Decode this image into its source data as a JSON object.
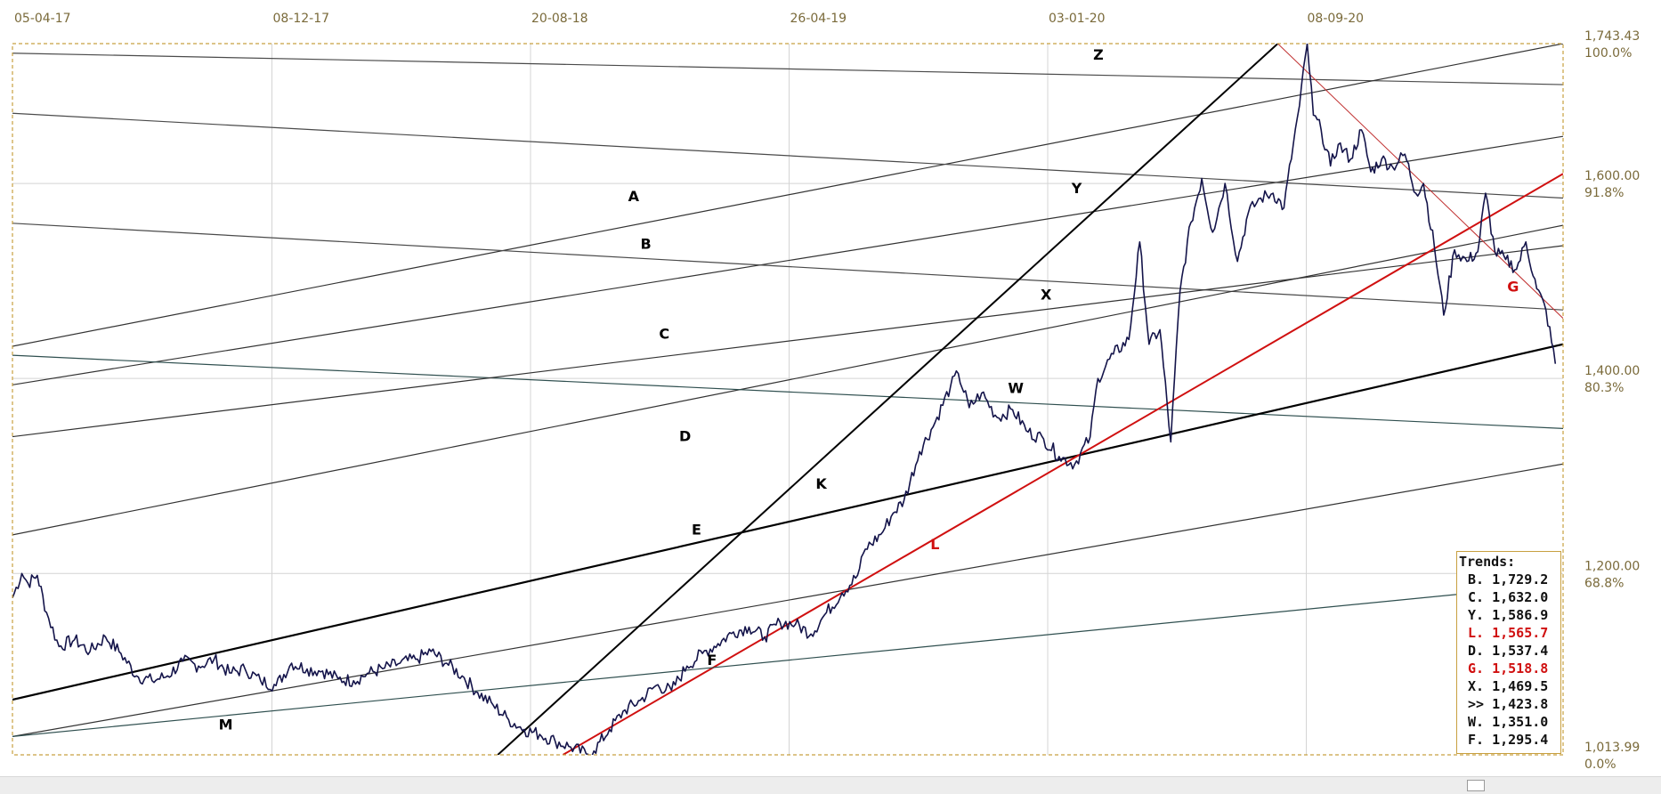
{
  "chart_data": {
    "type": "line",
    "x_ticks": [
      "05-04-17",
      "08-12-17",
      "20-08-18",
      "26-04-19",
      "03-01-20",
      "08-09-20"
    ],
    "price_ticks": [
      "1,743.43",
      "1,600.00",
      "1,400.00",
      "1,200.00",
      "1,013.99"
    ],
    "price_tick_values": [
      1743.43,
      1600,
      1400,
      1200,
      1013.99
    ],
    "pct_ticks": [
      "100.0%",
      "91.8%",
      "80.3%",
      "68.8%",
      "0.0%"
    ],
    "ylim": [
      1013.99,
      1743.43
    ],
    "grid": true,
    "series_color": "#14144a",
    "price_points": [
      [
        0.0,
        1175
      ],
      [
        0.6,
        1200
      ],
      [
        1.0,
        1190
      ],
      [
        1.6,
        1198
      ],
      [
        2.2,
        1160
      ],
      [
        3.0,
        1125
      ],
      [
        4.0,
        1132
      ],
      [
        5.0,
        1120
      ],
      [
        6.0,
        1135
      ],
      [
        7.0,
        1118
      ],
      [
        8.0,
        1095
      ],
      [
        9.0,
        1090
      ],
      [
        10.0,
        1095
      ],
      [
        11.0,
        1110
      ],
      [
        12.0,
        1105
      ],
      [
        13.0,
        1112
      ],
      [
        14.0,
        1098
      ],
      [
        15.0,
        1102
      ],
      [
        16.0,
        1090
      ],
      [
        17.0,
        1085
      ],
      [
        18.0,
        1108
      ],
      [
        19.0,
        1102
      ],
      [
        20.0,
        1100
      ],
      [
        21.0,
        1092
      ],
      [
        22.0,
        1090
      ],
      [
        23.0,
        1098
      ],
      [
        24.0,
        1103
      ],
      [
        25.0,
        1108
      ],
      [
        26.0,
        1112
      ],
      [
        27.0,
        1120
      ],
      [
        28.0,
        1108
      ],
      [
        29.0,
        1095
      ],
      [
        30.0,
        1078
      ],
      [
        31.0,
        1065
      ],
      [
        32.0,
        1050
      ],
      [
        33.0,
        1040
      ],
      [
        34.0,
        1035
      ],
      [
        35.0,
        1028
      ],
      [
        36.0,
        1022
      ],
      [
        37.0,
        1015
      ],
      [
        37.5,
        1018
      ],
      [
        38.5,
        1040
      ],
      [
        39.5,
        1060
      ],
      [
        40.5,
        1070
      ],
      [
        41.5,
        1085
      ],
      [
        42.5,
        1080
      ],
      [
        43.5,
        1105
      ],
      [
        44.5,
        1118
      ],
      [
        45.5,
        1128
      ],
      [
        46.5,
        1140
      ],
      [
        47.5,
        1145
      ],
      [
        48.5,
        1135
      ],
      [
        49.5,
        1150
      ],
      [
        50.5,
        1148
      ],
      [
        51.5,
        1138
      ],
      [
        52.5,
        1160
      ],
      [
        53.5,
        1180
      ],
      [
        54.5,
        1198
      ],
      [
        55.0,
        1225
      ],
      [
        56.0,
        1240
      ],
      [
        56.8,
        1262
      ],
      [
        57.5,
        1275
      ],
      [
        58.5,
        1325
      ],
      [
        59.5,
        1355
      ],
      [
        60.5,
        1392
      ],
      [
        61.0,
        1405
      ],
      [
        61.7,
        1370
      ],
      [
        62.5,
        1385
      ],
      [
        63.5,
        1360
      ],
      [
        64.5,
        1368
      ],
      [
        65.5,
        1345
      ],
      [
        66.5,
        1338
      ],
      [
        67.5,
        1320
      ],
      [
        68.5,
        1312
      ],
      [
        69.5,
        1340
      ],
      [
        70.0,
        1400
      ],
      [
        71.0,
        1425
      ],
      [
        72.0,
        1440
      ],
      [
        72.7,
        1540
      ],
      [
        73.3,
        1435
      ],
      [
        74.0,
        1450
      ],
      [
        74.7,
        1335
      ],
      [
        75.3,
        1490
      ],
      [
        76.0,
        1560
      ],
      [
        76.7,
        1605
      ],
      [
        77.4,
        1550
      ],
      [
        78.2,
        1600
      ],
      [
        79.0,
        1520
      ],
      [
        79.7,
        1570
      ],
      [
        80.5,
        1585
      ],
      [
        81.3,
        1590
      ],
      [
        82.0,
        1575
      ],
      [
        82.6,
        1640
      ],
      [
        83.0,
        1680
      ],
      [
        83.5,
        1743
      ],
      [
        83.9,
        1670
      ],
      [
        84.4,
        1655
      ],
      [
        85.0,
        1618
      ],
      [
        85.5,
        1640
      ],
      [
        86.3,
        1625
      ],
      [
        87.0,
        1655
      ],
      [
        87.6,
        1612
      ],
      [
        88.3,
        1625
      ],
      [
        89.0,
        1617
      ],
      [
        89.8,
        1630
      ],
      [
        90.5,
        1590
      ],
      [
        91.0,
        1600
      ],
      [
        91.7,
        1535
      ],
      [
        92.3,
        1465
      ],
      [
        93.0,
        1532
      ],
      [
        93.8,
        1520
      ],
      [
        94.5,
        1530
      ],
      [
        95.0,
        1590
      ],
      [
        95.6,
        1530
      ],
      [
        96.3,
        1522
      ],
      [
        97.0,
        1512
      ],
      [
        97.6,
        1540
      ],
      [
        98.3,
        1492
      ],
      [
        98.9,
        1470
      ],
      [
        99.5,
        1415
      ]
    ],
    "trend_lines": [
      {
        "name": "Z",
        "p1": [
          -30.4,
          1743.43
        ],
        "p2": [
          100.0,
          1701.4
        ],
        "color": "#4a4a4a",
        "width": 1.2
      },
      {
        "name": "A",
        "p1": [
          0.0,
          1433
        ],
        "p2": [
          100.0,
          1743.43
        ],
        "color": "#333333",
        "width": 1.2
      },
      {
        "name": "B",
        "p1": [
          0.0,
          1393.5
        ],
        "p2": [
          100.0,
          1648.3
        ],
        "color": "#333333",
        "width": 1.2
      },
      {
        "name": "Y",
        "p1": [
          0.0,
          1672.0
        ],
        "p2": [
          100.0,
          1585.0
        ],
        "color": "#4a4a4a",
        "width": 1.2
      },
      {
        "name": "X",
        "p1": [
          0.0,
          1559.2
        ],
        "p2": [
          100.0,
          1470.3
        ],
        "color": "#4a4a4a",
        "width": 1.2
      },
      {
        "name": "C",
        "p1": [
          0.0,
          1239.6
        ],
        "p2": [
          100.0,
          1557.1
        ],
        "color": "#333333",
        "width": 1.2
      },
      {
        "name": "W",
        "p1": [
          0.0,
          1423.8
        ],
        "p2": [
          100.0,
          1348.7
        ],
        "color": "#2f4f4f",
        "width": 1.2
      },
      {
        "name": "D",
        "p1": [
          0.0,
          1340.3
        ],
        "p2": [
          100.0,
          1536.2
        ],
        "color": "#333333",
        "width": 1.2
      },
      {
        "name": "E",
        "p1": [
          0.0,
          1070.6
        ],
        "p2": [
          100.0,
          1435.1
        ],
        "color": "#000000",
        "width": 2.2
      },
      {
        "name": "F",
        "p1": [
          0.0,
          1032.8
        ],
        "p2": [
          100.0,
          1312.3
        ],
        "color": "#333333",
        "width": 1.2
      },
      {
        "name": "K",
        "p1": [
          31.3,
          1013.99
        ],
        "p2": [
          81.6,
          1743.43
        ],
        "color": "#000000",
        "width": 2.0
      },
      {
        "name": "L",
        "p1": [
          35.5,
          1013.99
        ],
        "p2": [
          100.0,
          1609.9
        ],
        "color": "#d01010",
        "width": 2.0
      },
      {
        "name": "G",
        "p1": [
          81.6,
          1743.43
        ],
        "p2": [
          100.0,
          1461.7
        ],
        "color": "#c03030",
        "width": 1.0
      },
      {
        "name": "M",
        "p1": [
          0.0,
          1032.8
        ],
        "p2": [
          93.4,
          1178.9
        ],
        "color": "#2f4f4f",
        "width": 1.2
      }
    ],
    "trend_letters": [
      {
        "text": "Z",
        "x": 69.7,
        "y": 1727,
        "color": "#000000"
      },
      {
        "text": "A",
        "x": 39.7,
        "y": 1582,
        "color": "#000000"
      },
      {
        "text": "B",
        "x": 40.5,
        "y": 1533,
        "color": "#000000"
      },
      {
        "text": "Y",
        "x": 68.3,
        "y": 1590,
        "color": "#000000"
      },
      {
        "text": "X",
        "x": 66.3,
        "y": 1481,
        "color": "#000000"
      },
      {
        "text": "C",
        "x": 41.7,
        "y": 1441,
        "color": "#000000"
      },
      {
        "text": "W",
        "x": 64.2,
        "y": 1385,
        "color": "#000000"
      },
      {
        "text": "D",
        "x": 43.0,
        "y": 1336,
        "color": "#000000"
      },
      {
        "text": "K",
        "x": 51.8,
        "y": 1287,
        "color": "#000000"
      },
      {
        "text": "E",
        "x": 43.8,
        "y": 1240,
        "color": "#000000"
      },
      {
        "text": "L",
        "x": 59.2,
        "y": 1225,
        "color": "#d01010"
      },
      {
        "text": "F",
        "x": 44.8,
        "y": 1106,
        "color": "#000000"
      },
      {
        "text": "M",
        "x": 13.3,
        "y": 1040,
        "color": "#000000"
      },
      {
        "text": "G",
        "x": 96.4,
        "y": 1489,
        "color": "#d01010"
      }
    ]
  },
  "trends": {
    "title": "Trends:",
    "rows": [
      {
        "text": "B. 1,729.2",
        "color": "#111111"
      },
      {
        "text": "C. 1,632.0",
        "color": "#111111"
      },
      {
        "text": "Y. 1,586.9",
        "color": "#111111"
      },
      {
        "text": "L. 1,565.7",
        "color": "#d01010"
      },
      {
        "text": "D. 1,537.4",
        "color": "#111111"
      },
      {
        "text": "G. 1,518.8",
        "color": "#d01010"
      },
      {
        "text": "X. 1,469.5",
        "color": "#111111"
      },
      {
        "text": ">> 1,423.8",
        "color": "#111111"
      },
      {
        "text": "W. 1,351.0",
        "color": "#111111"
      },
      {
        "text": "F. 1,295.4",
        "color": "#111111"
      }
    ]
  }
}
